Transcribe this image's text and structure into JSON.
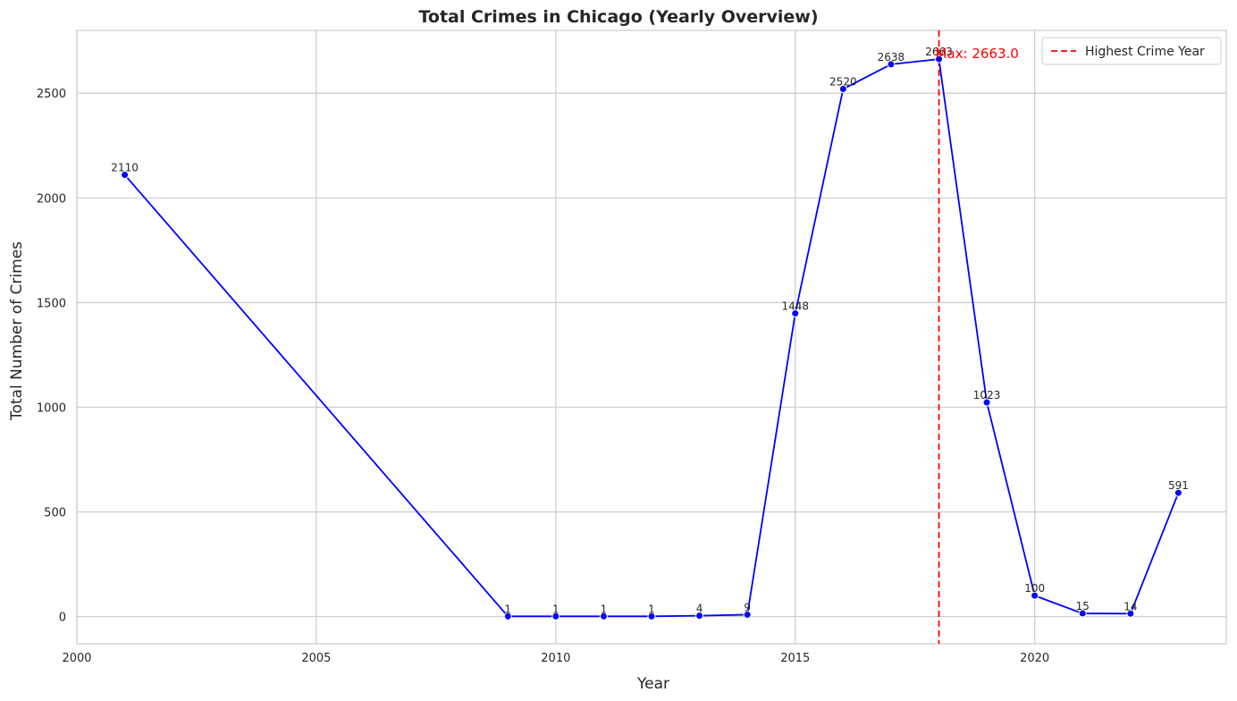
{
  "chart_data": {
    "type": "line",
    "title": "Total Crimes in Chicago (Yearly Overview)",
    "xlabel": "Year",
    "ylabel": "Total Number of Crimes",
    "xlim": [
      2000,
      2024
    ],
    "ylim": [
      -130,
      2800
    ],
    "xticks": [
      2000,
      2005,
      2010,
      2015,
      2020
    ],
    "yticks": [
      0,
      500,
      1000,
      1500,
      2000,
      2500
    ],
    "grid": true,
    "legend_position": "top-right",
    "line_color": "#0000ff",
    "series": [
      {
        "x": [
          2001,
          2009,
          2010,
          2011,
          2012,
          2013,
          2014,
          2015,
          2016,
          2017,
          2018,
          2019,
          2020,
          2021,
          2022,
          2023
        ],
        "values": [
          2110,
          1,
          1,
          1,
          1,
          4,
          9,
          1448,
          2520,
          2638,
          2663,
          1023,
          100,
          15,
          14,
          591
        ]
      }
    ],
    "reference_line": {
      "x": 2018,
      "label": "Highest Crime Year",
      "color": "#ff0000",
      "style": "dashed"
    },
    "annotation": {
      "text": "Max: 2663.0",
      "x": 2018,
      "y": 2663,
      "color": "#ff0000"
    }
  }
}
